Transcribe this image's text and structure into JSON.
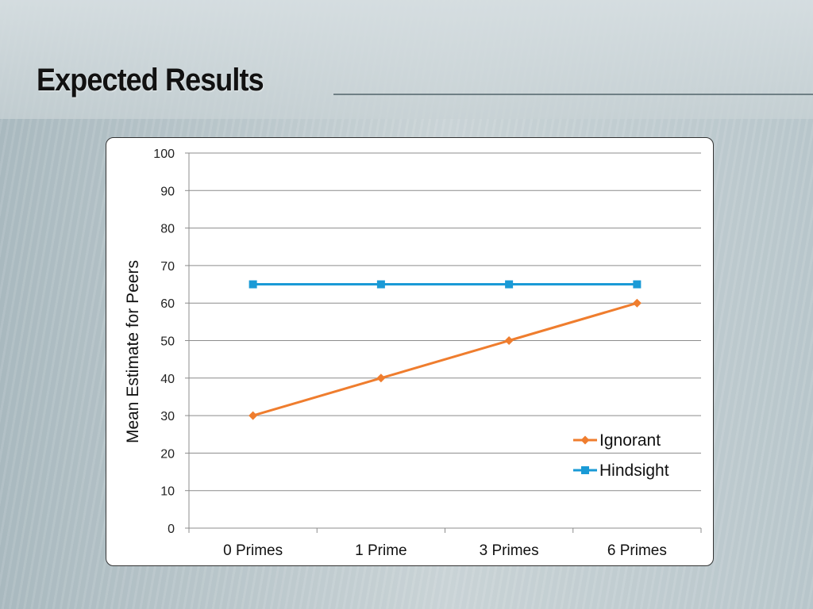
{
  "slide": {
    "title": "Expected Results"
  },
  "chart_data": {
    "type": "line",
    "title": "",
    "xlabel": "",
    "ylabel": "Mean Estimate for Peers",
    "categories": [
      "0 Primes",
      "1 Prime",
      "3 Primes",
      "6 Primes"
    ],
    "ylim": [
      0,
      100
    ],
    "yticks": [
      0,
      10,
      20,
      30,
      40,
      50,
      60,
      70,
      80,
      90,
      100
    ],
    "grid": true,
    "legend_position": "bottom-right",
    "series": [
      {
        "name": "Ignorant",
        "values": [
          30,
          40,
          50,
          60
        ],
        "color": "#ef7d2e",
        "marker": "diamond"
      },
      {
        "name": "Hindsight",
        "values": [
          65,
          65,
          65,
          65
        ],
        "color": "#1a9ad6",
        "marker": "square"
      }
    ]
  }
}
